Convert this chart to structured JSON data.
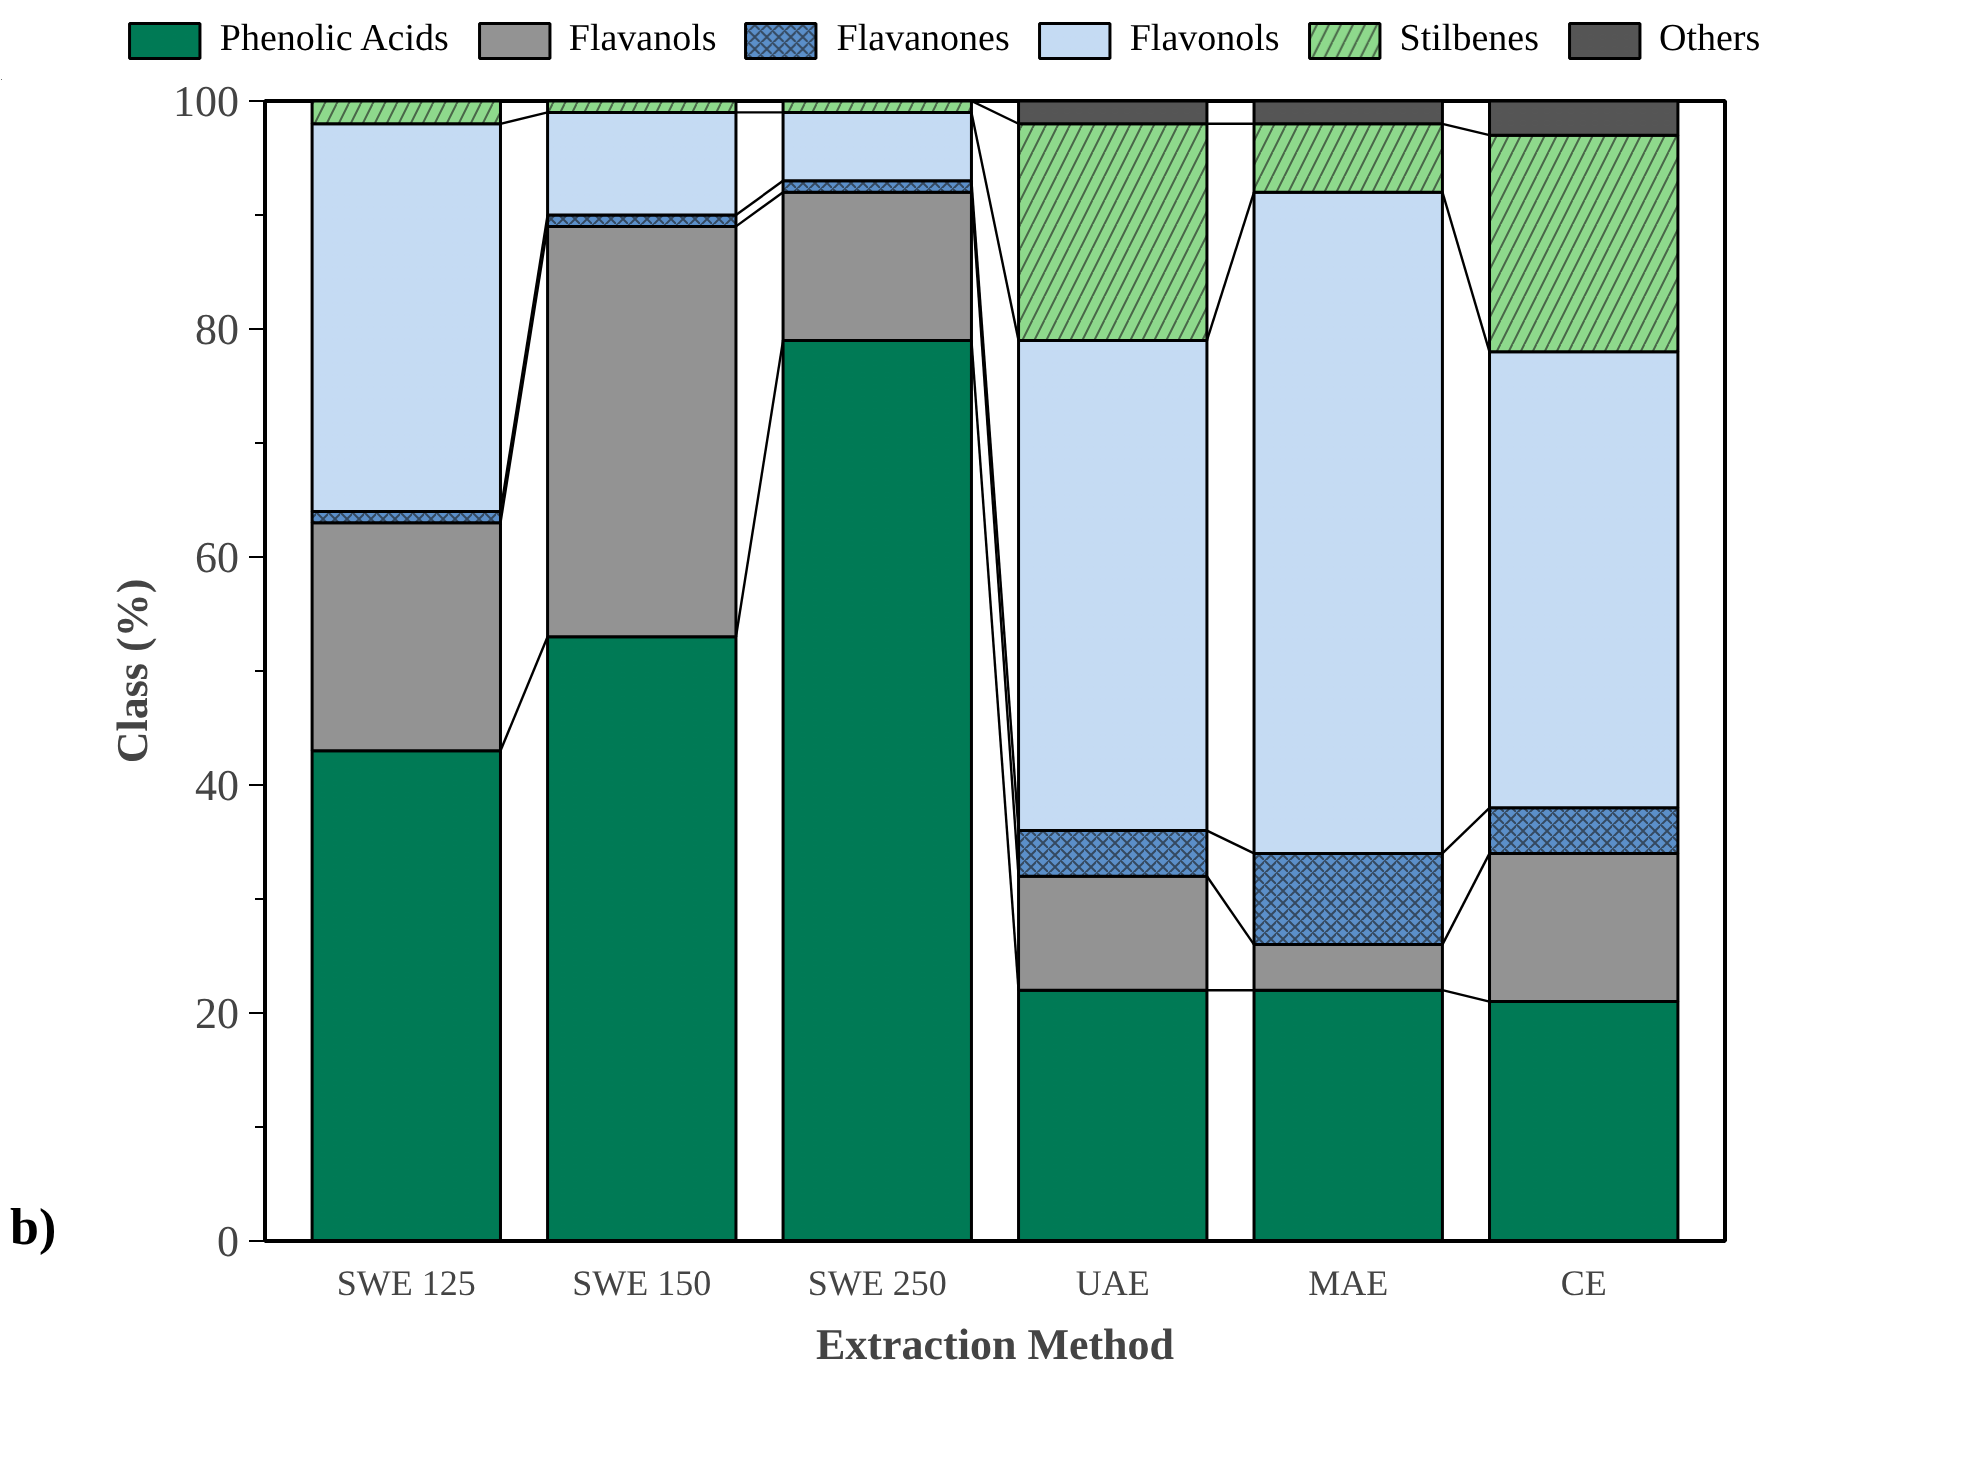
{
  "chart_data": {
    "type": "bar",
    "stacked": true,
    "xlabel": "Extraction Method",
    "ylabel": "Class (%)",
    "categories": [
      "SWE 125",
      "SWE 150",
      "SWE 250",
      "UAE",
      "MAE",
      "CE"
    ],
    "series": [
      {
        "name": "Phenolic Acids",
        "color": "#007a55",
        "values": [
          43,
          53,
          79,
          22,
          22,
          21
        ]
      },
      {
        "name": "Flavanols",
        "color": "#939393",
        "values": [
          20,
          36,
          13,
          10,
          4,
          13
        ]
      },
      {
        "name": "Flavanones",
        "color": "#5b8fc9",
        "values": [
          1,
          1,
          1,
          4,
          8,
          4
        ]
      },
      {
        "name": "Flavonols",
        "color": "#c5dbf3",
        "values": [
          34,
          9,
          6,
          43,
          58,
          40
        ]
      },
      {
        "name": "Stilbenes",
        "color": "#8ed98c",
        "values": [
          2,
          1,
          1,
          19,
          6,
          19
        ]
      },
      {
        "name": "Others",
        "color": "#555555",
        "values": [
          null,
          null,
          null,
          2,
          2,
          3
        ]
      }
    ],
    "ylim": [
      0,
      100
    ],
    "yticks": [
      0,
      20,
      40,
      60,
      80,
      100
    ],
    "annotations": [
      "b)"
    ],
    "legend": "top",
    "grid": false
  }
}
